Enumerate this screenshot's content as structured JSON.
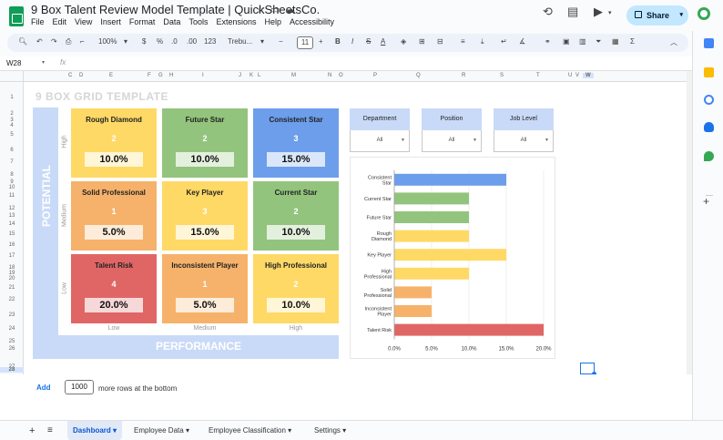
{
  "doc": {
    "title": "9 Box Talent Review Model Template | QuickSheetsCo.",
    "menu": [
      "File",
      "Edit",
      "View",
      "Insert",
      "Format",
      "Data",
      "Tools",
      "Extensions",
      "Help",
      "Accessibility"
    ],
    "share_label": "Share"
  },
  "toolbar": {
    "zoom": "100%",
    "currency": "$",
    "percent": "%",
    "dec_less": ".0",
    "dec_more": ".00",
    "number_format": "123",
    "font": "Trebu...",
    "font_size": "11"
  },
  "formula": {
    "cell_ref": "W28",
    "fx": "fx"
  },
  "columns": [
    "C",
    "D",
    "E",
    "F",
    "G",
    "H",
    "I",
    "J",
    "K",
    "L",
    "M",
    "N",
    "O",
    "P",
    "Q",
    "R",
    "S",
    "T",
    "U",
    "V",
    "W"
  ],
  "rows": [
    "1",
    "2",
    "3",
    "4",
    "5",
    "6",
    "7",
    "8",
    "9",
    "10",
    "11",
    "12",
    "13",
    "14",
    "15",
    "16",
    "17",
    "18",
    "19",
    "20",
    "21",
    "22",
    "23",
    "24",
    "25",
    "26",
    "27",
    "28"
  ],
  "sheet": {
    "title": "9 BOX GRID TEMPLATE",
    "y_axis": "POTENTIAL",
    "x_axis": "PERFORMANCE",
    "y_levels": [
      "High",
      "Medium",
      "Low"
    ],
    "x_levels": [
      "Low",
      "Medium",
      "High"
    ]
  },
  "boxes": [
    {
      "title": "Rough Diamond",
      "count": "2",
      "pct": "10.0%",
      "color": "#ffd966"
    },
    {
      "title": "Future Star",
      "count": "2",
      "pct": "10.0%",
      "color": "#93c47d"
    },
    {
      "title": "Consistent Star",
      "count": "3",
      "pct": "15.0%",
      "color": "#6d9eeb"
    },
    {
      "title": "Solid Professional",
      "count": "1",
      "pct": "5.0%",
      "color": "#f6b26b"
    },
    {
      "title": "Key Player",
      "count": "3",
      "pct": "15.0%",
      "color": "#ffd966"
    },
    {
      "title": "Current Star",
      "count": "2",
      "pct": "10.0%",
      "color": "#93c47d"
    },
    {
      "title": "Talent Risk",
      "count": "4",
      "pct": "20.0%",
      "color": "#e06666"
    },
    {
      "title": "Inconsistent Player",
      "count": "1",
      "pct": "5.0%",
      "color": "#f6b26b"
    },
    {
      "title": "High Professional",
      "count": "2",
      "pct": "10.0%",
      "color": "#ffd966"
    }
  ],
  "filters": [
    {
      "label": "Department",
      "value": "All"
    },
    {
      "label": "Position",
      "value": "All"
    },
    {
      "label": "Job Level",
      "value": "All"
    }
  ],
  "chart_data": {
    "type": "bar",
    "orientation": "horizontal",
    "categories": [
      "Consistent Star",
      "Current Star",
      "Future Star",
      "Rough Diamond",
      "Key Player",
      "High Professional",
      "Solid Professional",
      "Inconsistent Player",
      "Talent Risk"
    ],
    "values": [
      15,
      10,
      10,
      10,
      15,
      10,
      5,
      5,
      20
    ],
    "colors": [
      "#6d9eeb",
      "#93c47d",
      "#93c47d",
      "#ffd966",
      "#ffd966",
      "#ffd966",
      "#f6b26b",
      "#f6b26b",
      "#e06666"
    ],
    "xlim": [
      0,
      20
    ],
    "xticks": [
      "0.0%",
      "5.0%",
      "10.0%",
      "15.0%",
      "20.0%"
    ],
    "grid": true
  },
  "addrows": {
    "button": "Add",
    "count": "1000",
    "text": "more rows at the bottom"
  },
  "tabs": [
    "Dashboard",
    "Employee Data",
    "Employee Classification",
    "Settings"
  ]
}
